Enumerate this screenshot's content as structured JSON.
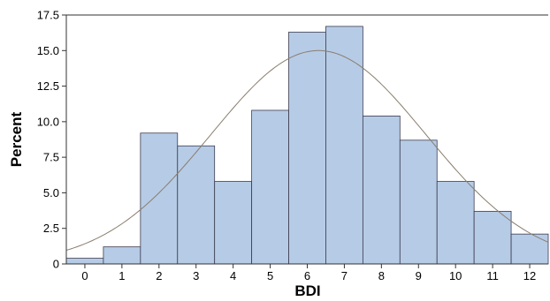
{
  "chart_data": {
    "type": "bar",
    "title": "",
    "xlabel": "BDI",
    "ylabel": "Percent",
    "x_ticks": [
      "0",
      "1",
      "2",
      "3",
      "4",
      "5",
      "6",
      "7",
      "8",
      "9",
      "10",
      "11",
      "12"
    ],
    "y_ticks": [
      "0",
      "2.5",
      "5.0",
      "7.5",
      "10.0",
      "12.5",
      "15.0",
      "17.5"
    ],
    "ylim": [
      0,
      17.5
    ],
    "xlim": [
      -0.5,
      12.5
    ],
    "grid": false,
    "series": [
      {
        "values": [
          0.4,
          1.2,
          9.2,
          8.3,
          5.8,
          10.8,
          16.3,
          16.7,
          10.4,
          8.7,
          5.8,
          3.7,
          2.1
        ]
      }
    ],
    "normal_curve": {
      "mean": 6.3,
      "sd": 2.9,
      "peak": 15.0
    },
    "colors": {
      "bar_fill": "#b6cbe6",
      "bar_stroke": "#3c3c50",
      "curve": "#8a7e6e",
      "axis": "#333333"
    }
  }
}
